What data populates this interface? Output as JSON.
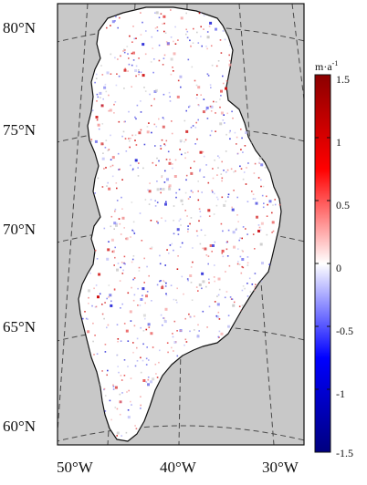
{
  "map": {
    "latitude_labels": [
      "80°N",
      "75°N",
      "70°N",
      "65°N",
      "60°N"
    ],
    "longitude_labels": [
      "50°W",
      "40°W",
      "30°W"
    ],
    "background_color": "#c8c8c8",
    "land_outline_color": "#111111",
    "graticule_style": "dashed"
  },
  "colorbar": {
    "unit_base": "m·a",
    "unit_exp": "-1",
    "tick_labels": [
      "1.5",
      "1",
      "0.5",
      "0",
      "-0.5",
      "-1",
      "-1.5"
    ],
    "range": [
      -1.5,
      1.5
    ],
    "colors": {
      "max": "#8b0000",
      "high": "#ff0000",
      "mid": "#ffffff",
      "low": "#0000ff",
      "min": "#00007f"
    }
  }
}
